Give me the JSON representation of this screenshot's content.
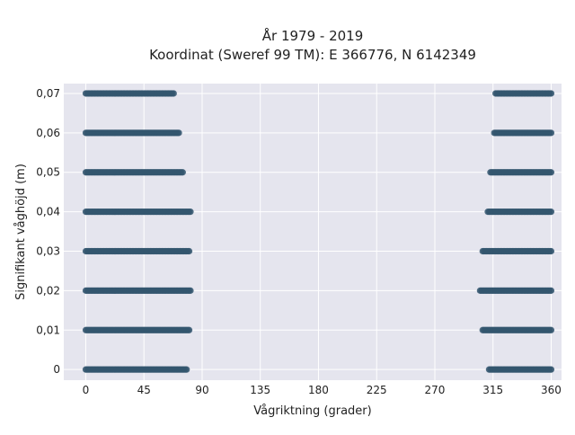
{
  "chart_data": {
    "type": "scatter",
    "title": "År 1979 - 2019",
    "subtitle": "Koordinat (Sweref 99 TM): E 366776, N 6142349",
    "xlabel": "Vågriktning (grader)",
    "ylabel": "Signifikant våghöjd (m)",
    "xlim": [
      -17,
      368
    ],
    "ylim": [
      -0.0027,
      0.0725
    ],
    "x_ticks": [
      0,
      45,
      90,
      135,
      180,
      225,
      270,
      315,
      360
    ],
    "x_tick_labels": [
      "0",
      "45",
      "90",
      "135",
      "180",
      "225",
      "270",
      "315",
      "360"
    ],
    "y_ticks": [
      0,
      0.01,
      0.02,
      0.03,
      0.04,
      0.05,
      0.06,
      0.07
    ],
    "y_tick_labels": [
      "0",
      "0,01",
      "0,02",
      "0,03",
      "0,04",
      "0,05",
      "0,06",
      "0,07"
    ],
    "grid": true,
    "marker_color": "#34566e",
    "series": [
      {
        "band_ranges": [
          {
            "y": 0.0,
            "ranges": [
              [
                0,
                78
              ],
              [
                312,
                360
              ]
            ]
          },
          {
            "y": 0.01,
            "ranges": [
              [
                0,
                80
              ],
              [
                307,
                360
              ]
            ]
          },
          {
            "y": 0.02,
            "ranges": [
              [
                0,
                81
              ],
              [
                305,
                360
              ]
            ]
          },
          {
            "y": 0.03,
            "ranges": [
              [
                0,
                80
              ],
              [
                307,
                360
              ]
            ]
          },
          {
            "y": 0.04,
            "ranges": [
              [
                0,
                81
              ],
              [
                311,
                360
              ]
            ]
          },
          {
            "y": 0.05,
            "ranges": [
              [
                0,
                75
              ],
              [
                313,
                360
              ]
            ]
          },
          {
            "y": 0.06,
            "ranges": [
              [
                0,
                72
              ],
              [
                316,
                360
              ]
            ]
          },
          {
            "y": 0.07,
            "ranges": [
              [
                0,
                68
              ],
              [
                317,
                360
              ]
            ]
          }
        ]
      }
    ]
  },
  "colors": {
    "plot_background": "#e5e5ee",
    "grid": "#ffffff",
    "text": "#222222"
  }
}
